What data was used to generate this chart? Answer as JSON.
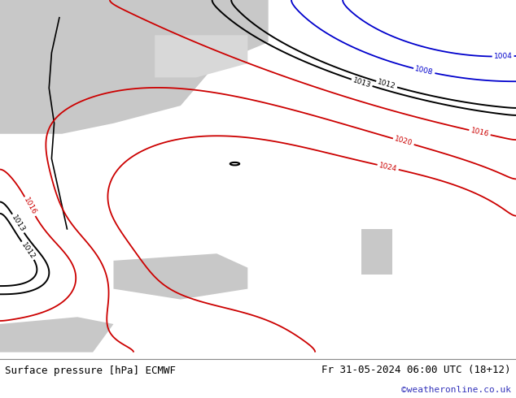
{
  "title_left": "Surface pressure [hPa] ECMWF",
  "title_right": "Fr 31-05-2024 06:00 UTC (18+12)",
  "watermark": "©weatheronline.co.uk",
  "land_green": "#90d090",
  "sea_gray": "#c8c8c8",
  "sea_light": "#d8d8d8",
  "contour_black": "#000000",
  "contour_red": "#cc0000",
  "contour_blue": "#0000cc",
  "bottom_bg": "#ffffff",
  "figsize": [
    6.34,
    4.9
  ],
  "dpi": 100
}
